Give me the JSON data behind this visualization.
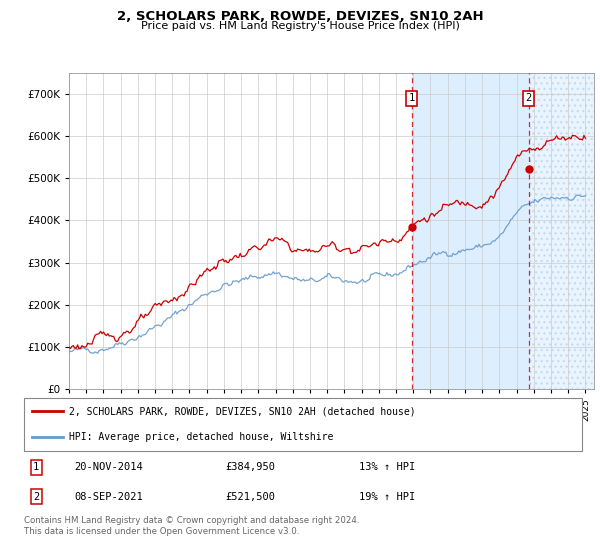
{
  "title": "2, SCHOLARS PARK, ROWDE, DEVIZES, SN10 2AH",
  "subtitle": "Price paid vs. HM Land Registry's House Price Index (HPI)",
  "ylabel_ticks": [
    "£0",
    "£100K",
    "£200K",
    "£300K",
    "£400K",
    "£500K",
    "£600K",
    "£700K"
  ],
  "ylim": [
    0,
    750000
  ],
  "yticks": [
    0,
    100000,
    200000,
    300000,
    400000,
    500000,
    600000,
    700000
  ],
  "sale1_date": "20-NOV-2014",
  "sale1_price": 384950,
  "sale1_label": "1",
  "sale1_pct": "13% ↑ HPI",
  "sale2_date": "08-SEP-2021",
  "sale2_price": 521500,
  "sale2_label": "2",
  "sale2_pct": "19% ↑ HPI",
  "legend_house": "2, SCHOLARS PARK, ROWDE, DEVIZES, SN10 2AH (detached house)",
  "legend_hpi": "HPI: Average price, detached house, Wiltshire",
  "footer": "Contains HM Land Registry data © Crown copyright and database right 2024.\nThis data is licensed under the Open Government Licence v3.0.",
  "house_color": "#cc0000",
  "hpi_color": "#6699cc",
  "sale1_x": 2014.9,
  "sale2_x": 2021.7,
  "hpi_years": [
    1995,
    1996,
    1997,
    1998,
    1999,
    2000,
    2001,
    2002,
    2003,
    2004,
    2005,
    2006,
    2007,
    2008,
    2009,
    2010,
    2011,
    2012,
    2013,
    2014,
    2015,
    2016,
    2017,
    2018,
    2019,
    2020,
    2021,
    2022,
    2023,
    2024,
    2025
  ],
  "hpi_vals": [
    88000,
    92000,
    100000,
    112000,
    128000,
    148000,
    170000,
    200000,
    228000,
    248000,
    255000,
    268000,
    278000,
    262000,
    252000,
    262000,
    258000,
    255000,
    262000,
    272000,
    295000,
    312000,
    325000,
    332000,
    338000,
    358000,
    415000,
    440000,
    452000,
    458000,
    460000
  ],
  "house_vals": [
    100000,
    105000,
    115000,
    128000,
    146000,
    168000,
    192000,
    225000,
    257000,
    280000,
    290000,
    305000,
    318000,
    298000,
    286000,
    298000,
    292000,
    288000,
    296000,
    308000,
    335000,
    354000,
    370000,
    378000,
    384000,
    406000,
    471000,
    500000,
    514000,
    520000,
    522000
  ]
}
